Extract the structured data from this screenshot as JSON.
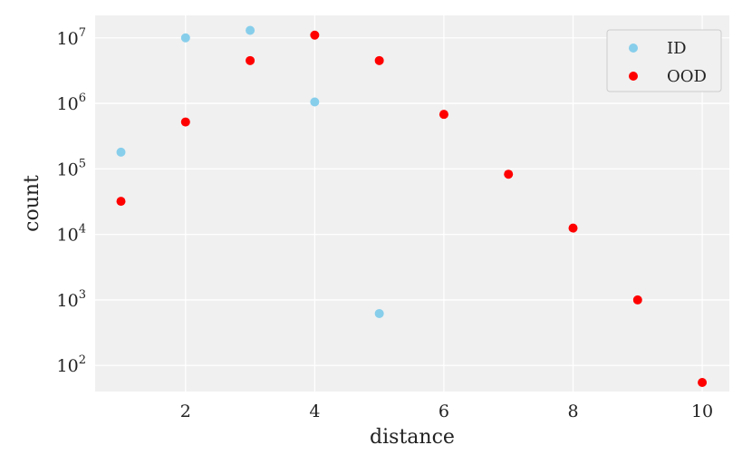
{
  "chart_data": {
    "type": "scatter",
    "title": "",
    "xlabel": "distance",
    "ylabel": "count",
    "xlim": [
      0.6,
      10.42
    ],
    "ylim": [
      40,
      22000000
    ],
    "yscale": "log",
    "grid": true,
    "legend_position": "top-right",
    "x_ticks": [
      2,
      4,
      6,
      8,
      10
    ],
    "x_tick_labels": [
      "2",
      "4",
      "6",
      "8",
      "10"
    ],
    "y_ticks": [
      100,
      1000,
      10000,
      100000,
      1000000,
      10000000
    ],
    "y_tick_labels": [
      {
        "base": "10",
        "exp": "2"
      },
      {
        "base": "10",
        "exp": "3"
      },
      {
        "base": "10",
        "exp": "4"
      },
      {
        "base": "10",
        "exp": "5"
      },
      {
        "base": "10",
        "exp": "6"
      },
      {
        "base": "10",
        "exp": "7"
      }
    ],
    "series": [
      {
        "name": "ID",
        "color": "#87ceeb",
        "points": [
          {
            "x": 1,
            "y": 180000
          },
          {
            "x": 2,
            "y": 10000000
          },
          {
            "x": 3,
            "y": 13000000
          },
          {
            "x": 4,
            "y": 1050000
          },
          {
            "x": 5,
            "y": 620
          }
        ]
      },
      {
        "name": "OOD",
        "color": "#ff0000",
        "points": [
          {
            "x": 1,
            "y": 32000
          },
          {
            "x": 2,
            "y": 520000
          },
          {
            "x": 3,
            "y": 4500000
          },
          {
            "x": 4,
            "y": 11000000
          },
          {
            "x": 5,
            "y": 4500000
          },
          {
            "x": 6,
            "y": 680000
          },
          {
            "x": 7,
            "y": 83000
          },
          {
            "x": 8,
            "y": 12500
          },
          {
            "x": 9,
            "y": 1000
          },
          {
            "x": 10,
            "y": 55
          }
        ]
      }
    ]
  },
  "colors": {
    "plot_background": "#f0f0f0",
    "grid": "#ffffff"
  }
}
